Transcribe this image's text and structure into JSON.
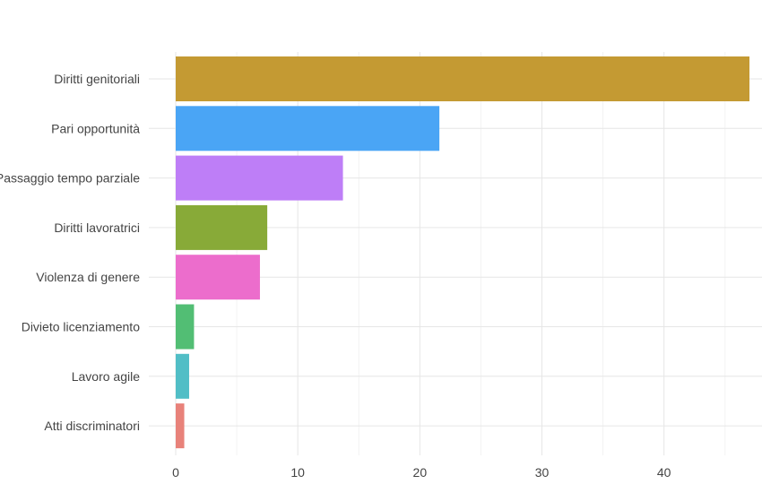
{
  "chart_data": {
    "type": "bar",
    "orientation": "horizontal",
    "categories": [
      "Diritti genitoriali",
      "Pari opportunità",
      "Passaggio tempo parziale",
      "Diritti lavoratrici",
      "Violenza di genere",
      "Divieto licenziamento",
      "Lavoro agile",
      "Atti discriminatori"
    ],
    "values": [
      47,
      21.6,
      13.7,
      7.5,
      6.9,
      1.5,
      1.1,
      0.7
    ],
    "colors": [
      "#c49a33",
      "#4aa5f5",
      "#be7ef7",
      "#88aa38",
      "#ec6dcc",
      "#52be74",
      "#51bec6",
      "#e8827a"
    ],
    "xlim": [
      0,
      48
    ],
    "xticks": [
      0,
      10,
      20,
      30,
      40
    ],
    "xtick_labels": [
      "0",
      "10",
      "20",
      "30",
      "40"
    ],
    "grid": true,
    "legend": "none",
    "title": "",
    "xlabel": "",
    "ylabel": ""
  }
}
